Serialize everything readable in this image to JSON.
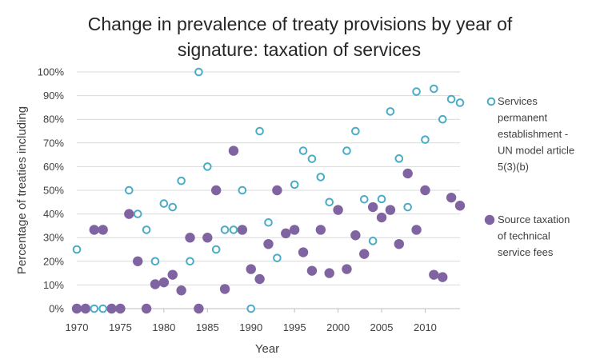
{
  "chart_data": {
    "type": "scatter",
    "title_lines": [
      "Change in prevalence of treaty provisions by year of",
      "signature: taxation of services"
    ],
    "xlabel": "Year",
    "ylabel": "Percentage of treaties including",
    "xlim": [
      1970,
      2014
    ],
    "ylim": [
      0,
      100
    ],
    "x_ticks": [
      1970,
      1975,
      1980,
      1985,
      1990,
      1995,
      2000,
      2005,
      2010
    ],
    "x_tick_labels": [
      "1970",
      "1975",
      "1980",
      "1985",
      "1990",
      "1995",
      "2000",
      "2005",
      "2010"
    ],
    "y_ticks": [
      0,
      10,
      20,
      30,
      40,
      50,
      60,
      70,
      80,
      90,
      100
    ],
    "y_tick_labels": [
      "0%",
      "10%",
      "20%",
      "30%",
      "40%",
      "50%",
      "60%",
      "70%",
      "80%",
      "90%",
      "100%"
    ],
    "legend_position": "right",
    "series": [
      {
        "name": "Services permanent establishment - UN model article 5(3)(b)",
        "legend_lines": [
          "Services",
          "permanent",
          "establishment -",
          "UN model article",
          "5(3)(b)"
        ],
        "marker": "hollow",
        "color": "#4BACC6",
        "points": [
          [
            1970,
            25
          ],
          [
            1972,
            0
          ],
          [
            1973,
            0
          ],
          [
            1976,
            50
          ],
          [
            1977,
            40
          ],
          [
            1978,
            33.3
          ],
          [
            1979,
            20
          ],
          [
            1980,
            44.4
          ],
          [
            1981,
            42.9
          ],
          [
            1982,
            54
          ],
          [
            1983,
            20
          ],
          [
            1984,
            100
          ],
          [
            1985,
            60
          ],
          [
            1986,
            25
          ],
          [
            1987,
            33.3
          ],
          [
            1988,
            33.3
          ],
          [
            1989,
            50
          ],
          [
            1990,
            0
          ],
          [
            1991,
            75
          ],
          [
            1992,
            36.4
          ],
          [
            1993,
            21.4
          ],
          [
            1995,
            52.4
          ],
          [
            1996,
            66.7
          ],
          [
            1997,
            63.3
          ],
          [
            1998,
            55.6
          ],
          [
            1999,
            45
          ],
          [
            2001,
            66.7
          ],
          [
            2002,
            75
          ],
          [
            2003,
            46.2
          ],
          [
            2004,
            28.6
          ],
          [
            2005,
            46.3
          ],
          [
            2006,
            83.3
          ],
          [
            2007,
            63.4
          ],
          [
            2008,
            42.9
          ],
          [
            2009,
            91.7
          ],
          [
            2010,
            71.4
          ],
          [
            2011,
            92.9
          ],
          [
            2012,
            80
          ],
          [
            2013,
            88.5
          ],
          [
            2014,
            87
          ]
        ]
      },
      {
        "name": "Source taxation of technical service fees",
        "legend_lines": [
          "Source taxation",
          "of technical",
          "service fees"
        ],
        "marker": "filled",
        "color": "#8064A2",
        "points": [
          [
            1970,
            0
          ],
          [
            1971,
            0
          ],
          [
            1972,
            33.3
          ],
          [
            1973,
            33.3
          ],
          [
            1974,
            0
          ],
          [
            1975,
            0
          ],
          [
            1976,
            40
          ],
          [
            1977,
            20
          ],
          [
            1978,
            0
          ],
          [
            1979,
            10.3
          ],
          [
            1980,
            11.1
          ],
          [
            1981,
            14.3
          ],
          [
            1982,
            7.7
          ],
          [
            1983,
            30
          ],
          [
            1984,
            0
          ],
          [
            1985,
            30
          ],
          [
            1986,
            50
          ],
          [
            1987,
            8.3
          ],
          [
            1988,
            66.7
          ],
          [
            1989,
            33.3
          ],
          [
            1990,
            16.7
          ],
          [
            1991,
            12.5
          ],
          [
            1992,
            27.3
          ],
          [
            1993,
            50
          ],
          [
            1994,
            31.8
          ],
          [
            1995,
            33.3
          ],
          [
            1996,
            23.8
          ],
          [
            1997,
            16
          ],
          [
            1998,
            33.3
          ],
          [
            1999,
            15
          ],
          [
            2000,
            41.7
          ],
          [
            2001,
            16.7
          ],
          [
            2002,
            31
          ],
          [
            2003,
            23.1
          ],
          [
            2004,
            42.9
          ],
          [
            2005,
            38.5
          ],
          [
            2006,
            41.7
          ],
          [
            2007,
            27.3
          ],
          [
            2008,
            57.1
          ],
          [
            2009,
            33.3
          ],
          [
            2010,
            50
          ],
          [
            2011,
            14.3
          ],
          [
            2012,
            13.3
          ],
          [
            2013,
            46.9
          ],
          [
            2014,
            43.5
          ]
        ]
      }
    ]
  }
}
